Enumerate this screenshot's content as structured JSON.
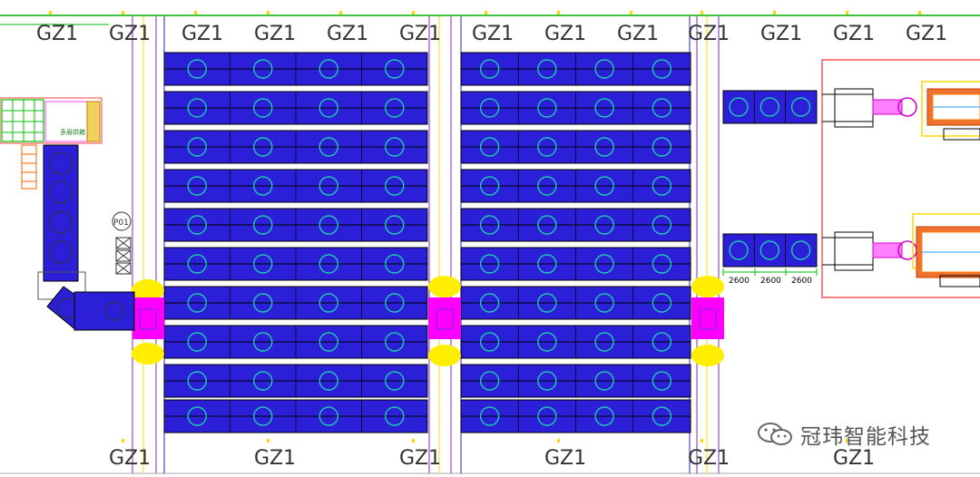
{
  "grid_label": "GZ1",
  "top_grid_labels": [
    "GZ1",
    "GZ1",
    "GZ1",
    "GZ1",
    "GZ1",
    "GZ1",
    "GZ1",
    "GZ1",
    "GZ1",
    "GZ1",
    "GZ1",
    "GZ1",
    "GZ1"
  ],
  "bottom_grid_labels": [
    "GZ1",
    "GZ1",
    "GZ1",
    "GZ1",
    "GZ1",
    "GZ1"
  ],
  "pallet_label": "P01",
  "machine_label": "多层烘箱",
  "dimensions": [
    "2600",
    "2600",
    "2600"
  ],
  "watermark": "冠玮智能科技",
  "colors": {
    "conveyor": "#2b1fd8",
    "roller": "#20c8b0",
    "transfer_cart": "#ff00ff",
    "cart_end": "#ffee00",
    "grid_line": "#7a2bd1",
    "frame": "#ff0000"
  },
  "icons": [
    "oven-machine-icon",
    "stacker-crane-icon",
    "wechat-logo-icon"
  ]
}
